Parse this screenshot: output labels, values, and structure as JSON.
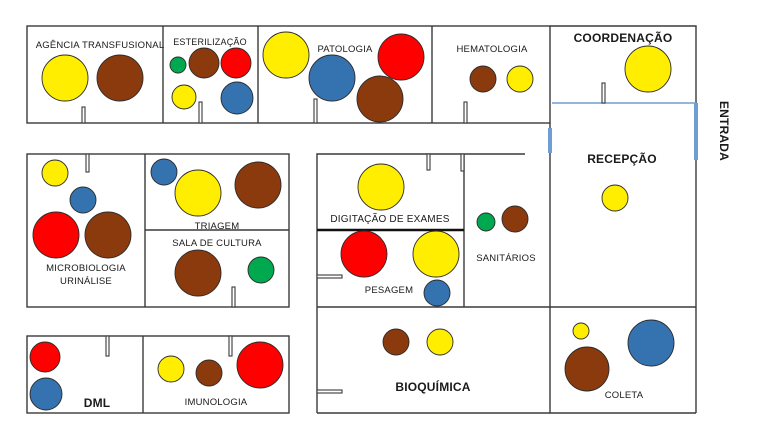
{
  "colors": {
    "yellow": "#ffee00",
    "brown": "#8b3a0e",
    "red": "#ff0000",
    "blue": "#3572b0",
    "green": "#00a84f",
    "wall": "#3a3a3a",
    "entrance": "#6e9ed2"
  },
  "labels": {
    "agencia": "AGÊNCIA TRANSFUSIONAL",
    "esterilizacao": "ESTERILIZAÇÃO",
    "patologia": "PATOLOGIA",
    "hematologia": "HEMATOLOGIA",
    "coordenacao": "COORDENAÇÃO",
    "entrada": "ENTRADA",
    "recepcao": "RECEPÇÃO",
    "microbiologia_1": "MICROBIOLOGIA",
    "microbiologia_2": "URINÁLISE",
    "triagem": "TRIAGEM",
    "sala_cultura": "SALA DE CULTURA",
    "digitacao": "DIGITAÇÃO DE EXAMES",
    "pesagem": "PESAGEM",
    "sanitarios": "SANITÁRIOS",
    "dml": "DML",
    "imunologia": "IMUNOLOGIA",
    "bioquimica": "BIOQUÍMICA",
    "coleta": "COLETA"
  },
  "circles": {
    "agencia": [
      "yellow",
      "brown"
    ],
    "esterilizacao": [
      "green",
      "brown",
      "red",
      "yellow",
      "blue"
    ],
    "patologia": [
      "yellow",
      "blue",
      "red",
      "brown"
    ],
    "hematologia": [
      "brown",
      "yellow"
    ],
    "coordenacao": [
      "yellow"
    ],
    "recepcao": [
      "yellow"
    ],
    "microbiologia": [
      "yellow",
      "blue",
      "red",
      "brown"
    ],
    "triagem": [
      "blue",
      "yellow",
      "brown"
    ],
    "sala_cultura": [
      "brown",
      "green"
    ],
    "digitacao": [
      "yellow"
    ],
    "pesagem": [
      "red",
      "yellow",
      "blue"
    ],
    "sanitarios": [
      "green",
      "brown"
    ],
    "dml": [
      "red",
      "blue"
    ],
    "imunologia": [
      "yellow",
      "brown",
      "red"
    ],
    "bioquimica": [
      "brown",
      "yellow"
    ],
    "coleta": [
      "yellow",
      "blue",
      "brown"
    ]
  }
}
